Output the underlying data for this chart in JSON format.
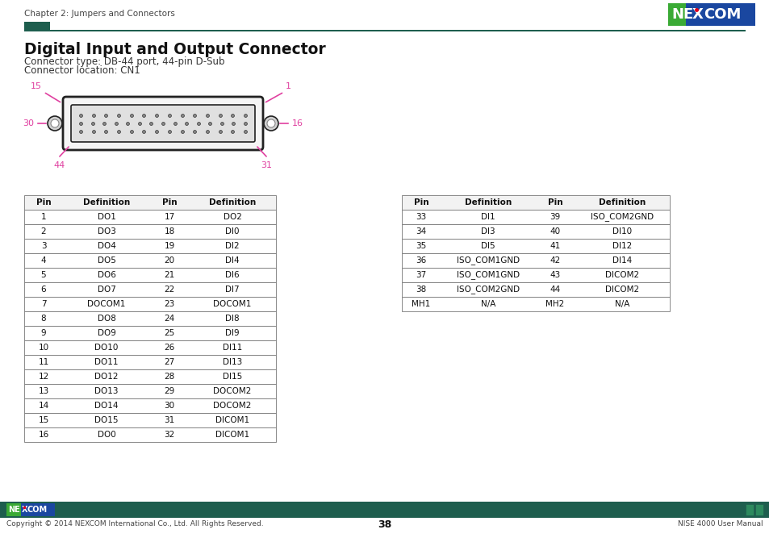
{
  "page_title": "Chapter 2: Jumpers and Connectors",
  "section_title": "Digital Input and Output Connector",
  "subtitle_lines": [
    "Connector type: DB-44 port, 44-pin D-Sub",
    "Connector location: CN1"
  ],
  "header_color": "#1e5e4e",
  "nexcom_logo_blue": "#1a47a0",
  "nexcom_logo_green": "#3aaa35",
  "nexcom_logo_red": "#e2001a",
  "table1_headers": [
    "Pin",
    "Definition",
    "Pin",
    "Definition"
  ],
  "table1_data": [
    [
      "1",
      "DO1",
      "17",
      "DO2"
    ],
    [
      "2",
      "DO3",
      "18",
      "DI0"
    ],
    [
      "3",
      "DO4",
      "19",
      "DI2"
    ],
    [
      "4",
      "DO5",
      "20",
      "DI4"
    ],
    [
      "5",
      "DO6",
      "21",
      "DI6"
    ],
    [
      "6",
      "DO7",
      "22",
      "DI7"
    ],
    [
      "7",
      "DOCOM1",
      "23",
      "DOCOM1"
    ],
    [
      "8",
      "DO8",
      "24",
      "DI8"
    ],
    [
      "9",
      "DO9",
      "25",
      "DI9"
    ],
    [
      "10",
      "DO10",
      "26",
      "DI11"
    ],
    [
      "11",
      "DO11",
      "27",
      "DI13"
    ],
    [
      "12",
      "DO12",
      "28",
      "DI15"
    ],
    [
      "13",
      "DO13",
      "29",
      "DOCOM2"
    ],
    [
      "14",
      "DO14",
      "30",
      "DOCOM2"
    ],
    [
      "15",
      "DO15",
      "31",
      "DICOM1"
    ],
    [
      "16",
      "DO0",
      "32",
      "DICOM1"
    ]
  ],
  "table2_headers": [
    "Pin",
    "Definition",
    "Pin",
    "Definition"
  ],
  "table2_data": [
    [
      "33",
      "DI1",
      "39",
      "ISO_COM2GND"
    ],
    [
      "34",
      "DI3",
      "40",
      "DI10"
    ],
    [
      "35",
      "DI5",
      "41",
      "DI12"
    ],
    [
      "36",
      "ISO_COM1GND",
      "42",
      "DI14"
    ],
    [
      "37",
      "ISO_COM1GND",
      "43",
      "DICOM2"
    ],
    [
      "38",
      "ISO_COM2GND",
      "44",
      "DICOM2"
    ],
    [
      "MH1",
      "N/A",
      "MH2",
      "N/A"
    ]
  ],
  "footer_text_left": "Copyright © 2014 NEXCOM International Co., Ltd. All Rights Reserved.",
  "footer_page": "38",
  "footer_text_right": "NISE 4000 User Manual",
  "bg_color": "#ffffff",
  "pink_color": "#e040a0",
  "connector_color": "#f5f5f5",
  "connector_edge": "#222222"
}
